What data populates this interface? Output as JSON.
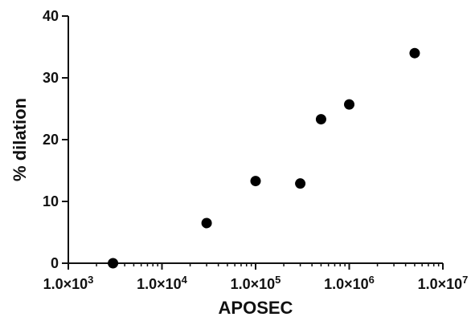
{
  "chart_data": {
    "type": "scatter",
    "title": "",
    "xlabel": "APOSEC",
    "ylabel": "% dilation",
    "x_scale": "log",
    "xlim": [
      1000,
      10000000
    ],
    "ylim": [
      0,
      40
    ],
    "grid": false,
    "legend": "none",
    "x_ticks": [
      {
        "value": 1000,
        "mantissa": "1.0×10",
        "exp": "3"
      },
      {
        "value": 10000,
        "mantissa": "1.0×10",
        "exp": "4"
      },
      {
        "value": 100000,
        "mantissa": "1.0×10",
        "exp": "5"
      },
      {
        "value": 1000000,
        "mantissa": "1.0×10",
        "exp": "6"
      },
      {
        "value": 10000000,
        "mantissa": "1.0×10",
        "exp": "7"
      }
    ],
    "y_ticks": [
      {
        "value": 0,
        "label": "0"
      },
      {
        "value": 10,
        "label": "10"
      },
      {
        "value": 20,
        "label": "20"
      },
      {
        "value": 30,
        "label": "30"
      },
      {
        "value": 40,
        "label": "40"
      }
    ],
    "points": [
      {
        "x": 3000,
        "y": 0
      },
      {
        "x": 30000,
        "y": 6.5
      },
      {
        "x": 100000,
        "y": 13.3
      },
      {
        "x": 300000,
        "y": 12.9
      },
      {
        "x": 500000,
        "y": 23.3
      },
      {
        "x": 1000000,
        "y": 25.7
      },
      {
        "x": 5000000,
        "y": 34.0
      }
    ],
    "marker_color": "#000000"
  }
}
